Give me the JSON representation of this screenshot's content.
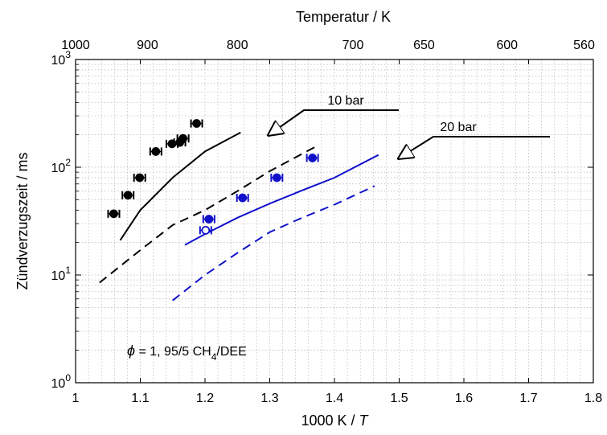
{
  "chart_data": {
    "type": "scatter",
    "xlabel": "1000 K / T",
    "xlabel_main": "1000 K / ",
    "xlabel_var": "T",
    "ylabel": "Zündverzugszeit / ms",
    "top_axis_label": "Temperatur / K",
    "xlim": [
      1.0,
      1.8
    ],
    "ylim": [
      1,
      1000
    ],
    "yscale": "log",
    "grid": true,
    "x_ticks": [
      "1",
      "1.1",
      "1.2",
      "1.3",
      "1.4",
      "1.5",
      "1.6",
      "1.7",
      "1.8"
    ],
    "y_ticks": [
      {
        "base": "10",
        "exp": "0",
        "value": 1
      },
      {
        "base": "10",
        "exp": "1",
        "value": 10
      },
      {
        "base": "10",
        "exp": "2",
        "value": 100
      },
      {
        "base": "10",
        "exp": "3",
        "value": 1000
      }
    ],
    "top_ticks": [
      {
        "label": "1000",
        "temperature": 1000
      },
      {
        "label": "900",
        "temperature": 900
      },
      {
        "label": "800",
        "temperature": 800
      },
      {
        "label": "700",
        "temperature": 700
      },
      {
        "label": "650",
        "temperature": 650
      },
      {
        "label": "600",
        "temperature": 600
      },
      {
        "label": "560",
        "temperature": 560
      }
    ],
    "annotations": {
      "bar10": "10 bar",
      "bar20": "20 bar",
      "condition_phi": "ϕ",
      "condition_mid": " = 1, 95/5 CH",
      "condition_sub": "4",
      "condition_end": "/DEE"
    },
    "series": [
      {
        "color": "#000000",
        "marker": "circle-filled",
        "points": [
          [
            1.059,
            37
          ],
          [
            1.081,
            55
          ],
          [
            1.099,
            80
          ],
          [
            1.124,
            140
          ],
          [
            1.149,
            165
          ],
          [
            1.161,
            170
          ],
          [
            1.166,
            185
          ],
          [
            1.187,
            255
          ]
        ]
      },
      {
        "color": "#000000",
        "line": "solid",
        "points": [
          [
            1.069,
            21
          ],
          [
            1.1,
            40
          ],
          [
            1.15,
            80
          ],
          [
            1.2,
            140
          ],
          [
            1.255,
            210
          ]
        ]
      },
      {
        "color": "#000000",
        "line": "dashed",
        "points": [
          [
            1.037,
            8.5
          ],
          [
            1.1,
            17
          ],
          [
            1.15,
            29
          ],
          [
            1.2,
            40
          ],
          [
            1.25,
            60
          ],
          [
            1.3,
            92
          ],
          [
            1.375,
            160
          ]
        ]
      },
      {
        "color": "#1111cc",
        "marker": "circle-filled",
        "points": [
          [
            1.206,
            33
          ],
          [
            1.258,
            52
          ],
          [
            1.311,
            80
          ],
          [
            1.366,
            122
          ]
        ]
      },
      {
        "color": "#1111cc",
        "marker": "circle-open",
        "points": [
          [
            1.201,
            26
          ]
        ]
      },
      {
        "color": "#1111cc",
        "line": "solid",
        "points": [
          [
            1.169,
            19
          ],
          [
            1.2,
            24
          ],
          [
            1.25,
            34
          ],
          [
            1.3,
            46
          ],
          [
            1.35,
            61
          ],
          [
            1.4,
            80
          ],
          [
            1.468,
            130
          ]
        ]
      },
      {
        "color": "#1111cc",
        "line": "dashed",
        "points": [
          [
            1.15,
            5.8
          ],
          [
            1.2,
            10
          ],
          [
            1.25,
            16
          ],
          [
            1.3,
            25
          ],
          [
            1.35,
            34
          ],
          [
            1.4,
            45
          ],
          [
            1.462,
            67
          ]
        ]
      }
    ]
  }
}
